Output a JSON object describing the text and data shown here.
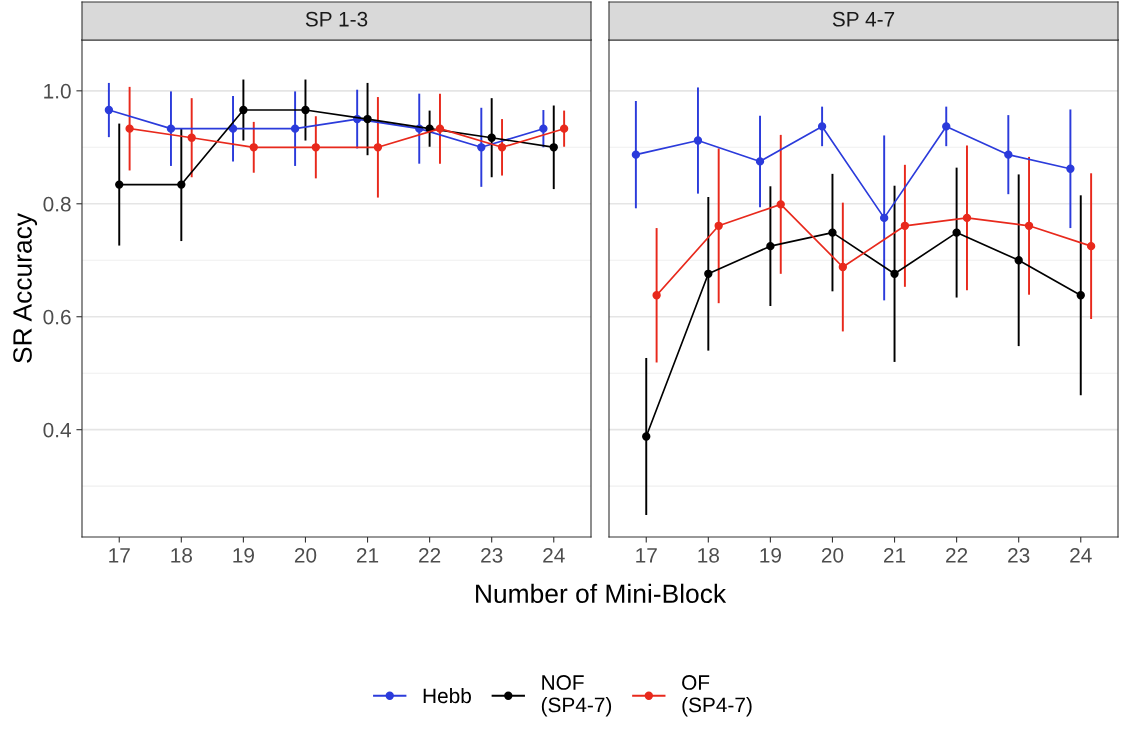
{
  "chart_data": [
    {
      "type": "line",
      "title": "SP 1-3",
      "xlabel": "Number of Mini-Block",
      "ylabel": "SR Accuracy",
      "categories": [
        "17",
        "18",
        "19",
        "20",
        "21",
        "22",
        "23",
        "24"
      ],
      "ylim": [
        0.21,
        1.09
      ],
      "yticks": [
        {
          "value": 0.4,
          "label": "0.4"
        },
        {
          "value": 0.6,
          "label": "0.6"
        },
        {
          "value": 0.8,
          "label": "0.8"
        },
        {
          "value": 1,
          "label": "1.0"
        }
      ],
      "grid": "y",
      "legend": "bottom",
      "marker": "circle",
      "line_style": "solid",
      "series": [
        {
          "name": "Hebb",
          "color": "#2b3bdb",
          "values": [
            0.966,
            0.933,
            0.933,
            0.933,
            0.95,
            0.933,
            0.9,
            0.933
          ],
          "errors": [
            0.048,
            0.066,
            0.058,
            0.066,
            0.052,
            0.062,
            0.07,
            0.033
          ]
        },
        {
          "name": "NOF\n(SP4-7)",
          "color": "#000000",
          "values": [
            0.834,
            0.834,
            0.966,
            0.966,
            0.95,
            0.933,
            0.917,
            0.9
          ],
          "errors": [
            0.108,
            0.1,
            0.054,
            0.054,
            0.064,
            0.032,
            0.07,
            0.074
          ]
        },
        {
          "name": "OF\n(SP4-7)",
          "color": "#e8291c",
          "values": [
            0.933,
            0.917,
            0.9,
            0.9,
            0.9,
            0.933,
            0.9,
            0.933
          ],
          "errors": [
            0.074,
            0.07,
            0.045,
            0.055,
            0.089,
            0.062,
            0.05,
            0.032
          ]
        }
      ]
    },
    {
      "type": "line",
      "title": "SP 4-7",
      "categories": [
        "17",
        "18",
        "19",
        "20",
        "21",
        "22",
        "23",
        "24"
      ],
      "ylim": [
        0.21,
        1.09
      ],
      "yticks": [
        {
          "value": 0.4,
          "label": null
        },
        {
          "value": 0.6,
          "label": null
        },
        {
          "value": 0.8,
          "label": null
        },
        {
          "value": 1,
          "label": null
        }
      ],
      "grid": "y",
      "tick_labels": "x",
      "marker": "circle",
      "line_style": "solid",
      "series": [
        {
          "color": "#2b3bdb",
          "values": [
            0.887,
            0.912,
            0.875,
            0.937,
            0.775,
            0.937,
            0.887,
            0.862
          ],
          "errors": [
            0.095,
            0.094,
            0.081,
            0.035,
            0.146,
            0.035,
            0.07,
            0.105
          ]
        },
        {
          "color": "#000000",
          "values": [
            0.388,
            0.676,
            0.725,
            0.749,
            0.676,
            0.749,
            0.7,
            0.638
          ],
          "errors": [
            0.139,
            0.136,
            0.106,
            0.104,
            0.156,
            0.115,
            0.152,
            0.177
          ]
        },
        {
          "color": "#e8291c",
          "values": [
            0.638,
            0.761,
            0.799,
            0.688,
            0.761,
            0.775,
            0.761,
            0.725
          ],
          "errors": [
            0.119,
            0.137,
            0.123,
            0.114,
            0.108,
            0.128,
            0.122,
            0.129
          ]
        }
      ]
    }
  ]
}
